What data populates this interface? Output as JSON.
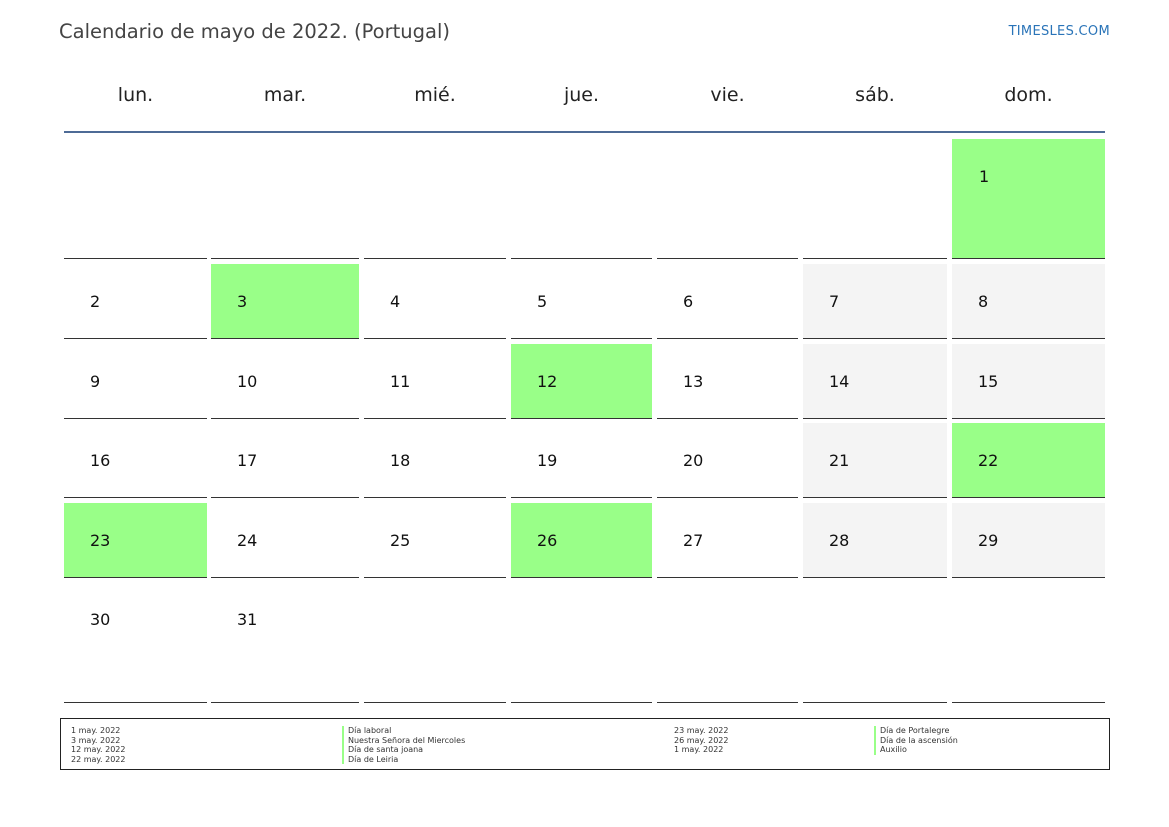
{
  "header": {
    "title": "Calendario de mayo de 2022. (Portugal)",
    "brand": "TIMESLES.COM"
  },
  "weekdays": [
    "lun.",
    "mar.",
    "mié.",
    "jue.",
    "vie.",
    "sáb.",
    "dom."
  ],
  "colors": {
    "holiday": "#99ff88",
    "weekend": "#f4f4f4",
    "header_line": "#4e6b96",
    "brand": "#2a74b8"
  },
  "calendar": {
    "month_first_weekday_index": 6,
    "days_in_month": 31,
    "holidays": [
      1,
      3,
      12,
      22,
      23,
      26
    ]
  },
  "legend": {
    "left": {
      "dates": [
        "1 may. 2022",
        "3 may. 2022",
        "12 may. 2022",
        "22 may. 2022"
      ],
      "names": [
        "Día laboral",
        "Nuestra Señora del Miercoles",
        "Día de santa joana",
        "Día de Leiria"
      ]
    },
    "right": {
      "dates": [
        "23 may. 2022",
        "26 may. 2022",
        "1 may. 2022"
      ],
      "names": [
        "Día de Portalegre",
        "Día de la ascensión",
        "Auxilio"
      ]
    }
  }
}
